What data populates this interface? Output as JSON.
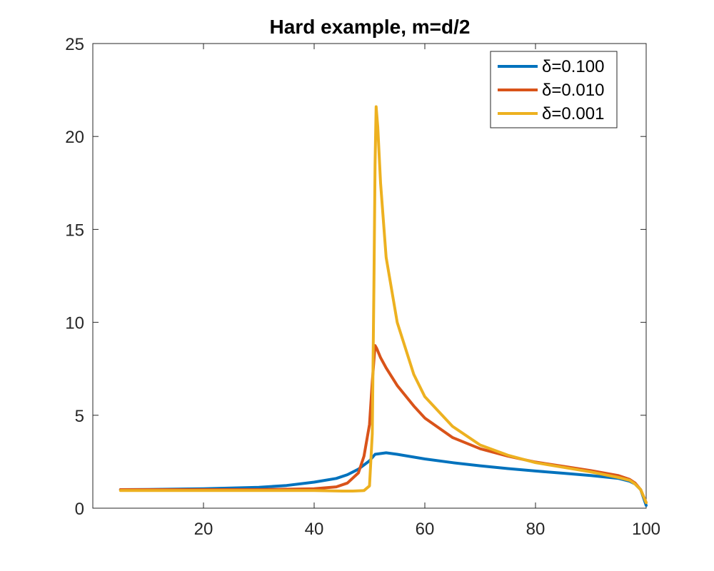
{
  "chart_data": {
    "type": "line",
    "title": "Hard example, m=d/2",
    "xlabel": "",
    "ylabel": "",
    "xlim": [
      0,
      100
    ],
    "ylim": [
      0,
      25
    ],
    "xticks": [
      20,
      40,
      60,
      80,
      100
    ],
    "yticks": [
      0,
      5,
      10,
      15,
      20,
      25
    ],
    "grid": false,
    "legend_position": "top-right",
    "series": [
      {
        "name": "δ=0.100",
        "color": "#0072BD",
        "x": [
          5,
          10,
          20,
          30,
          35,
          40,
          44,
          46,
          48,
          50,
          51,
          53,
          55,
          60,
          65,
          70,
          75,
          80,
          85,
          90,
          95,
          97,
          98,
          99,
          100
        ],
        "y": [
          1.0,
          1.01,
          1.05,
          1.12,
          1.22,
          1.4,
          1.6,
          1.8,
          2.1,
          2.55,
          2.9,
          2.98,
          2.9,
          2.65,
          2.45,
          2.28,
          2.13,
          2.0,
          1.88,
          1.76,
          1.6,
          1.45,
          1.3,
          1.0,
          0.15
        ]
      },
      {
        "name": "δ=0.010",
        "color": "#D95319",
        "x": [
          5,
          10,
          20,
          30,
          40,
          44,
          46,
          48,
          49,
          50,
          50.5,
          51,
          51.3,
          52,
          53,
          55,
          58,
          60,
          65,
          70,
          75,
          80,
          85,
          90,
          95,
          97,
          98,
          99,
          100
        ],
        "y": [
          1.0,
          1.0,
          1.0,
          1.0,
          1.05,
          1.15,
          1.35,
          1.9,
          2.8,
          4.5,
          6.8,
          8.75,
          8.6,
          8.1,
          7.55,
          6.6,
          5.5,
          4.85,
          3.8,
          3.2,
          2.8,
          2.48,
          2.25,
          2.02,
          1.75,
          1.55,
          1.35,
          1.0,
          0.3
        ]
      },
      {
        "name": "δ=0.001",
        "color": "#EDB120",
        "x": [
          5,
          10,
          20,
          30,
          40,
          45,
          47,
          49,
          50,
          50.5,
          50.8,
          51.0,
          51.2,
          51.5,
          52,
          53,
          55,
          58,
          60,
          65,
          70,
          75,
          80,
          85,
          90,
          95,
          97,
          98,
          99,
          100
        ],
        "y": [
          0.95,
          0.95,
          0.95,
          0.95,
          0.95,
          0.92,
          0.92,
          0.95,
          1.2,
          4.0,
          12.0,
          18.5,
          21.6,
          20.5,
          17.5,
          13.5,
          10.0,
          7.2,
          6.0,
          4.4,
          3.4,
          2.85,
          2.45,
          2.2,
          1.95,
          1.65,
          1.5,
          1.3,
          1.0,
          0.3
        ]
      }
    ]
  }
}
